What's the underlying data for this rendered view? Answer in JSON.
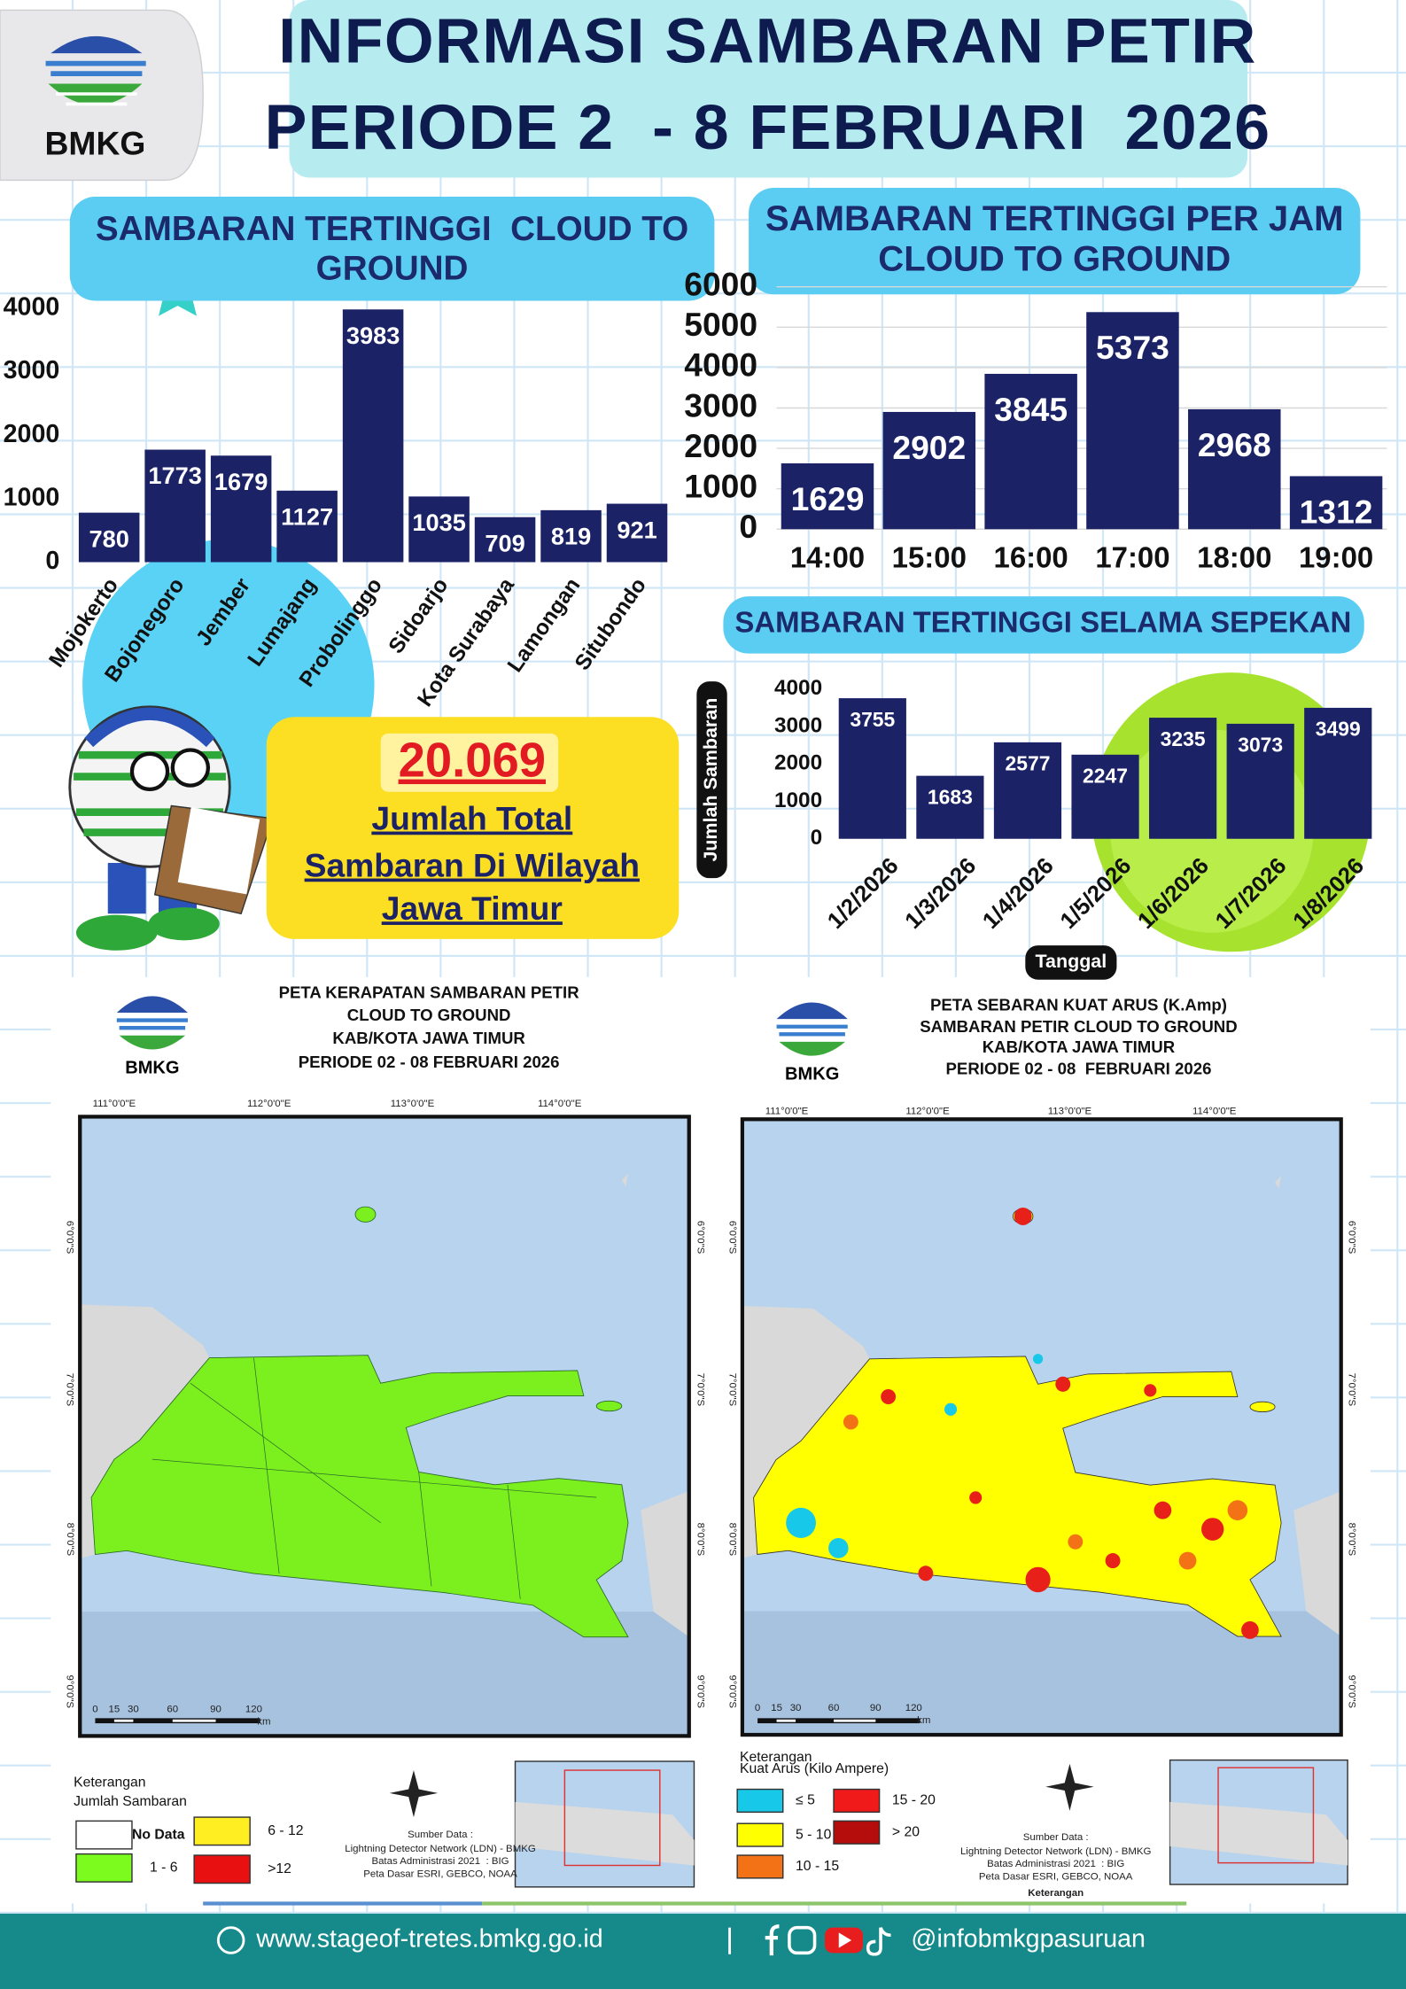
{
  "header": {
    "logo": "BMKG",
    "title": [
      "INFORMASI SAMBARAN PETIR",
      "PERIODE 2  - 8 FEBRUARI  2026"
    ]
  },
  "chart_data": [
    {
      "type": "bar",
      "title": [
        "SAMBARAN TERTINGGI  CLOUD TO",
        "GROUND"
      ],
      "categories": [
        "Mojokerto",
        "Bojonegoro",
        "Jember",
        "Lumajang",
        "Probolinggo",
        "Sidoarjo",
        "Kota Surabaya",
        "Lamongan",
        "Situbondo"
      ],
      "values": [
        780,
        1773,
        1679,
        1127,
        3983,
        1035,
        709,
        819,
        921
      ],
      "color": "#1b2266",
      "ylim": [
        0,
        4000
      ],
      "yticks": [
        0,
        1000,
        2000,
        3000,
        4000
      ],
      "grid": false
    },
    {
      "type": "bar",
      "title": [
        "SAMBARAN TERTINGGI PER JAM",
        "CLOUD TO GROUND"
      ],
      "categories": [
        "14:00",
        "15:00",
        "16:00",
        "17:00",
        "18:00",
        "19:00"
      ],
      "values": [
        1629,
        2902,
        3845,
        5373,
        2968,
        1312
      ],
      "color": "#1b2266",
      "ylim": [
        0,
        6000
      ],
      "yticks": [
        0,
        1000,
        2000,
        3000,
        4000,
        5000,
        6000
      ],
      "grid": true
    },
    {
      "type": "bar",
      "title": [
        "SAMBARAN TERTINGGI SELAMA SEPEKAN"
      ],
      "y_label": "Jumlah Sambaran",
      "x_label": "Tanggal",
      "categories": [
        "1/2/2026",
        "1/3/2026",
        "1/4/2026",
        "1/5/2026",
        "1/6/2026",
        "1/7/2026",
        "1/8/2026"
      ],
      "values": [
        3755,
        1683,
        2577,
        2247,
        3235,
        3073,
        3499
      ],
      "color": "#1b2266",
      "ylim": [
        0,
        4000
      ],
      "yticks": [
        0,
        1000,
        2000,
        3000,
        4000
      ],
      "grid": false
    }
  ],
  "summary": {
    "total": "20.069",
    "lines": [
      "Jumlah Total",
      "Sambaran Di Wilayah",
      "Jawa Timur"
    ]
  },
  "maps": [
    {
      "logo": "BMKG",
      "title": [
        "PETA KERAPATAN SAMBARAN PETIR",
        "CLOUD TO GROUND",
        "KAB/KOTA JAWA TIMUR",
        "PERIODE 02 - 08 FEBRUARI 2026"
      ],
      "lon_labels": [
        "111°0'0\"E",
        "112°0'0\"E",
        "113°0'0\"E",
        "114°0'0\"E"
      ],
      "lat_labels": [
        "6°0'0\"S",
        "7°0'0\"S",
        "8°0'0\"S",
        "9°0'0\"S"
      ],
      "scale_labels": [
        "0",
        "15",
        "30",
        "60",
        "90",
        "120",
        "km"
      ],
      "legend_title": [
        "Keterangan",
        "Jumlah Sambaran"
      ],
      "legend": [
        {
          "label": "No Data",
          "color": "#ffffff"
        },
        {
          "label": "1 - 6",
          "color": "#7cfc1e"
        },
        {
          "label": "6 - 12",
          "color": "#ffee22"
        },
        {
          "label": ">12",
          "color": "#e81010"
        }
      ],
      "source": [
        "Sumber Data :",
        "Lightning Detector Network (LDN) - BMKG",
        "Batas Administrasi 2021  : BIG",
        "Peta Dasar ESRI, GEBCO, NOAA"
      ]
    },
    {
      "logo": "BMKG",
      "title": [
        "PETA SEBARAN KUAT ARUS (K.Amp)",
        "SAMBARAN PETIR CLOUD TO GROUND",
        "KAB/KOTA JAWA TIMUR",
        "PERIODE 02 - 08  FEBRUARI 2026"
      ],
      "lon_labels": [
        "111°0'0\"E",
        "112°0'0\"E",
        "113°0'0\"E",
        "114°0'0\"E"
      ],
      "lat_labels": [
        "6°0'0\"S",
        "7°0'0\"S",
        "8°0'0\"S",
        "9°0'0\"S"
      ],
      "scale_labels": [
        "0",
        "15",
        "30",
        "60",
        "90",
        "120",
        "km"
      ],
      "legend_title": [
        "Keterangan",
        "Kuat Arus (Kilo Ampere)"
      ],
      "legend": [
        {
          "label": "≤ 5",
          "color": "#18c8e8"
        },
        {
          "label": "5 - 10",
          "color": "#ffff00"
        },
        {
          "label": "10 - 15",
          "color": "#f47216"
        },
        {
          "label": "15 - 20",
          "color": "#f01a1a"
        },
        {
          "label": "> 20",
          "color": "#b50c0c"
        }
      ],
      "source": [
        "Sumber Data :",
        "Lightning Detector Network (LDN) - BMKG",
        "Batas Administrasi 2021  : BIG",
        "Peta Dasar ESRI, GEBCO, NOAA",
        "Keterangan"
      ]
    }
  ],
  "footer": {
    "website": "www.stageof-tretes.bmkg.go.id",
    "handle": "@infobmkgpasuruan"
  }
}
